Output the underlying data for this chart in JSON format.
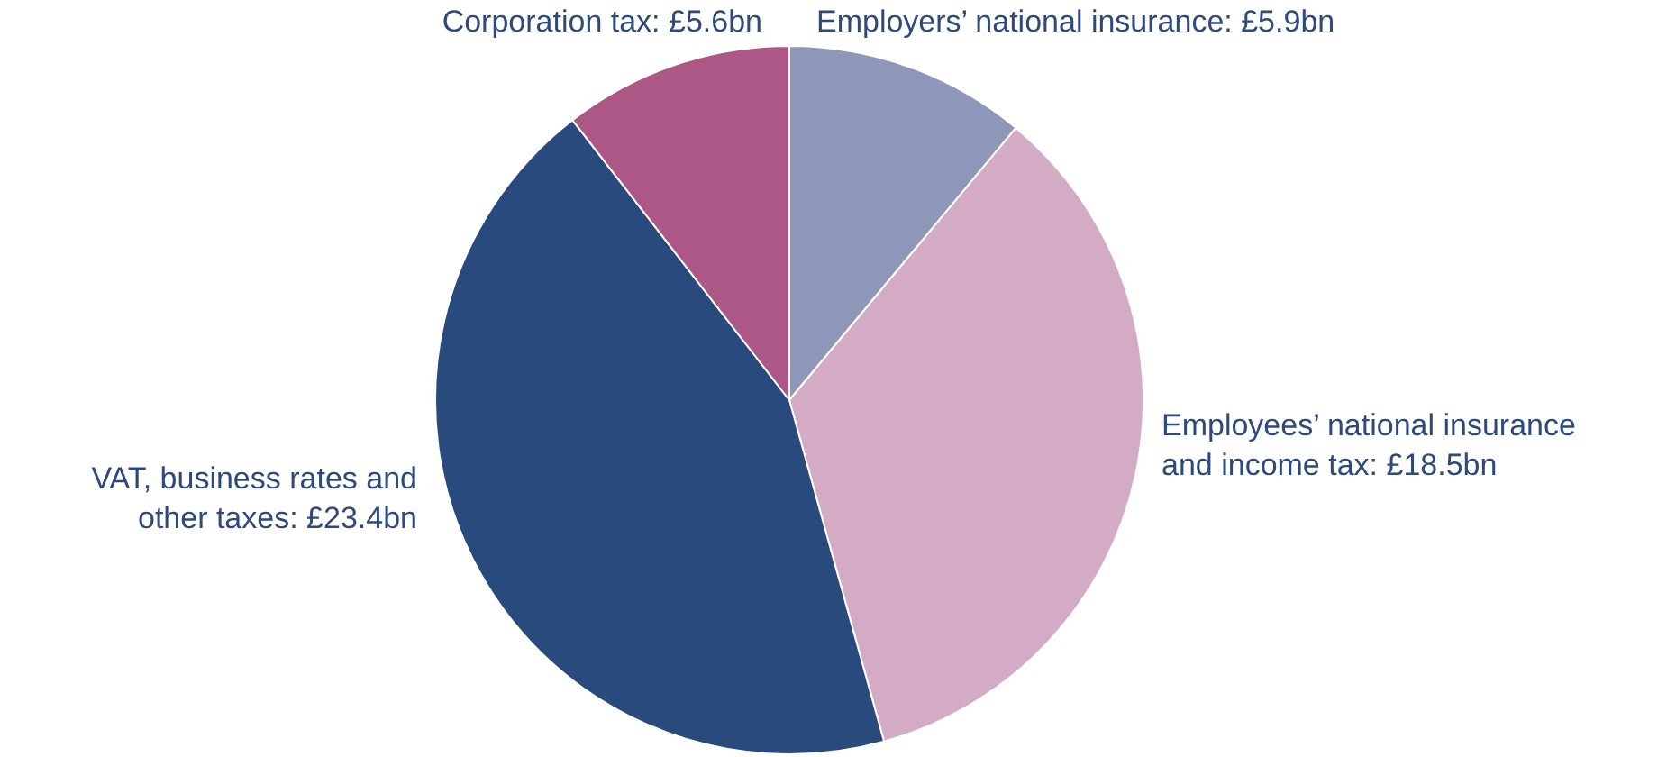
{
  "chart_data": {
    "type": "pie",
    "categories": [
      "Employers’ national insurance: £5.9bn",
      "Employees’ national insurance and income tax: £18.5bn",
      "VAT, business rates and other taxes: £23.4bn",
      "Corporation tax: £5.6bn"
    ],
    "values": [
      5.9,
      18.5,
      23.4,
      5.6
    ],
    "colors": [
      "#8f97b8",
      "#d4abc5",
      "#294a7c",
      "#ad5787"
    ]
  }
}
